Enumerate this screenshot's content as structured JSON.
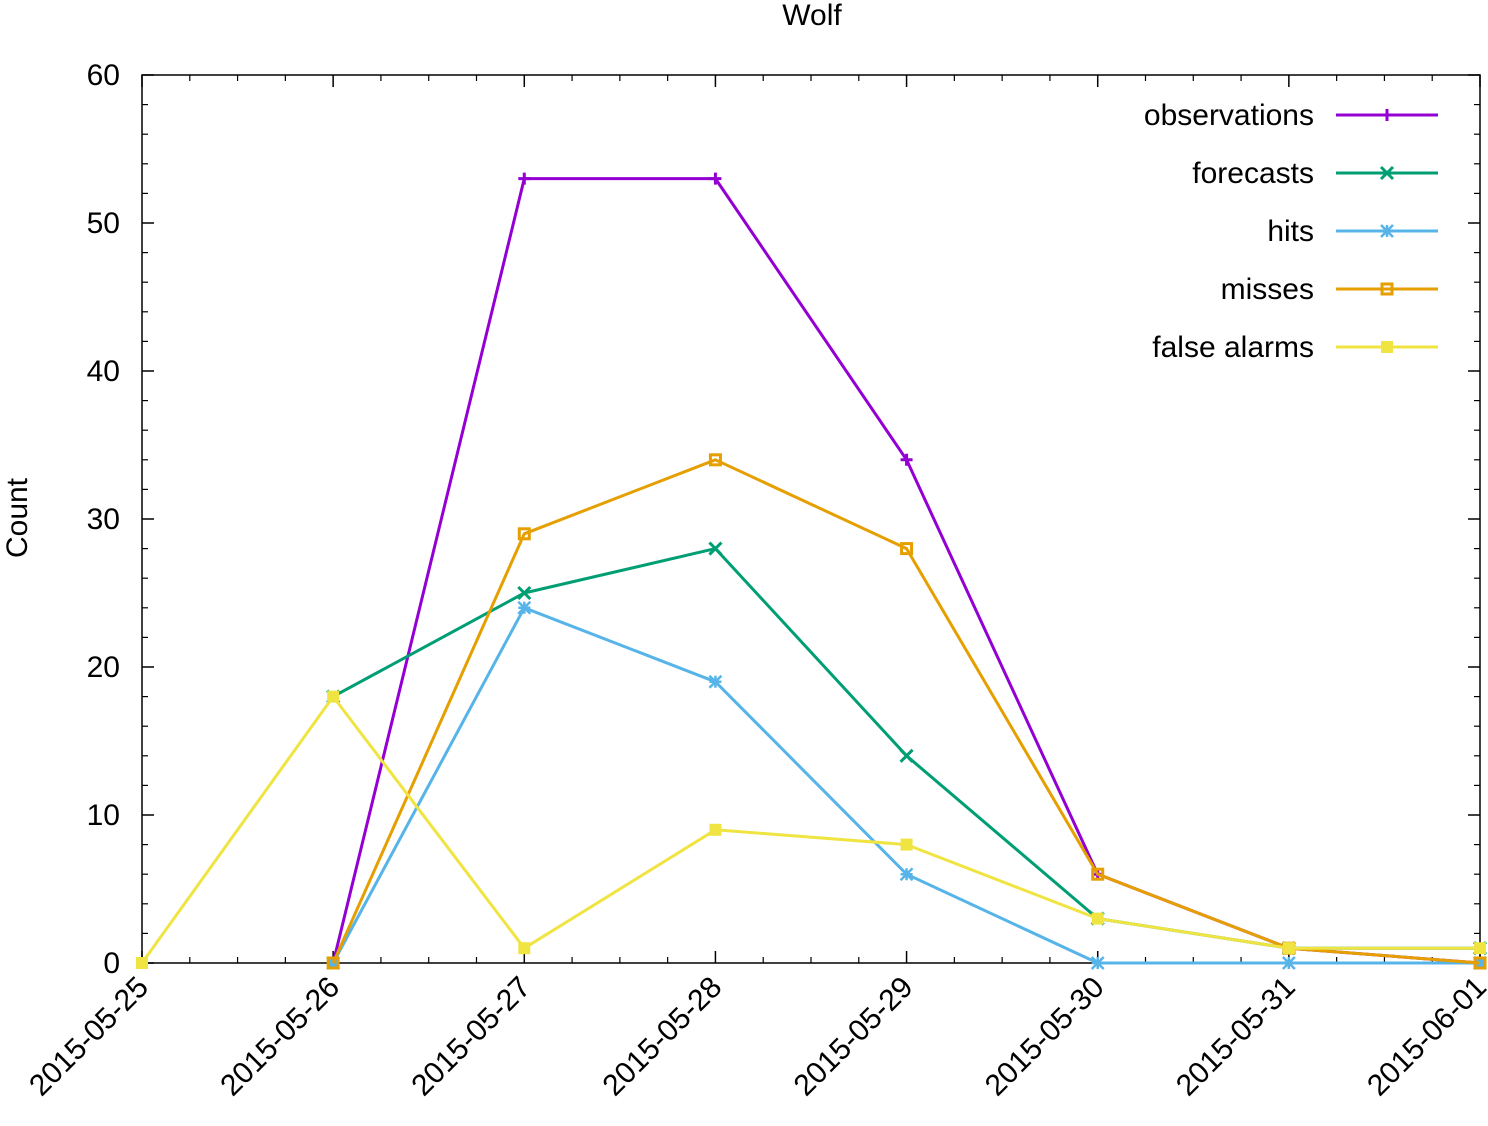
{
  "chart_data": {
    "type": "line",
    "title": "Wolf",
    "xlabel": "",
    "ylabel": "Count",
    "x": [
      "2015-05-25",
      "2015-05-26",
      "2015-05-27",
      "2015-05-28",
      "2015-05-29",
      "2015-05-30",
      "2015-05-31",
      "2015-06-01"
    ],
    "ylim": [
      0,
      60
    ],
    "yticks": [
      0,
      10,
      20,
      30,
      40,
      50,
      60
    ],
    "grid": false,
    "legend_position": "top-right",
    "series": [
      {
        "name": "observations",
        "color": "#9400d3",
        "marker": "plus",
        "points": [
          [
            "2015-05-26",
            0
          ],
          [
            "2015-05-27",
            53
          ],
          [
            "2015-05-28",
            53
          ],
          [
            "2015-05-29",
            34
          ],
          [
            "2015-05-30",
            6
          ],
          [
            "2015-05-31",
            1
          ],
          [
            "2015-06-01",
            0
          ]
        ]
      },
      {
        "name": "forecasts",
        "color": "#009e73",
        "marker": "cross",
        "points": [
          [
            "2015-05-26",
            18
          ],
          [
            "2015-05-27",
            25
          ],
          [
            "2015-05-28",
            28
          ],
          [
            "2015-05-29",
            14
          ],
          [
            "2015-05-30",
            3
          ],
          [
            "2015-05-31",
            1
          ],
          [
            "2015-06-01",
            1
          ]
        ]
      },
      {
        "name": "hits",
        "color": "#56b4e9",
        "marker": "star",
        "points": [
          [
            "2015-05-26",
            0
          ],
          [
            "2015-05-27",
            24
          ],
          [
            "2015-05-28",
            19
          ],
          [
            "2015-05-29",
            6
          ],
          [
            "2015-05-30",
            0
          ],
          [
            "2015-05-31",
            0
          ],
          [
            "2015-06-01",
            0
          ]
        ]
      },
      {
        "name": "misses",
        "color": "#e69f00",
        "marker": "open-square",
        "points": [
          [
            "2015-05-26",
            0
          ],
          [
            "2015-05-27",
            29
          ],
          [
            "2015-05-28",
            34
          ],
          [
            "2015-05-29",
            28
          ],
          [
            "2015-05-30",
            6
          ],
          [
            "2015-05-31",
            1
          ],
          [
            "2015-06-01",
            0
          ]
        ]
      },
      {
        "name": "false alarms",
        "color": "#f0e442",
        "marker": "filled-square",
        "points": [
          [
            "2015-05-25",
            0
          ],
          [
            "2015-05-26",
            18
          ],
          [
            "2015-05-27",
            1
          ],
          [
            "2015-05-28",
            9
          ],
          [
            "2015-05-29",
            8
          ],
          [
            "2015-05-30",
            3
          ],
          [
            "2015-05-31",
            1
          ],
          [
            "2015-06-01",
            1
          ]
        ]
      }
    ]
  }
}
